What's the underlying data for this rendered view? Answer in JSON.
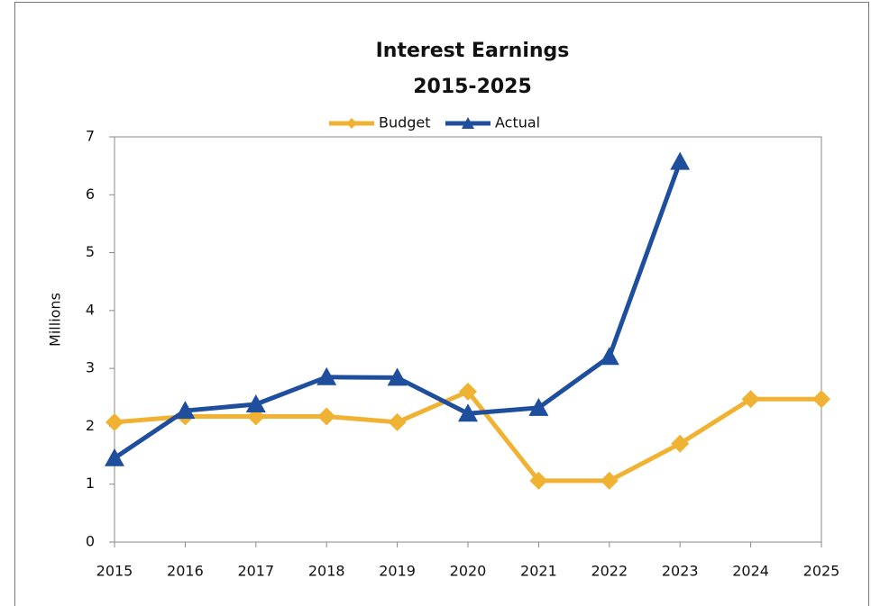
{
  "chart_data": {
    "type": "line",
    "title": [
      "Interest Earnings",
      "2015-2025"
    ],
    "y_label": "Millions",
    "x": [
      2015,
      2016,
      2017,
      2018,
      2019,
      2020,
      2021,
      2022,
      2023,
      2024,
      2025
    ],
    "xlim": [
      2015,
      2025
    ],
    "xticks": [
      2015,
      2016,
      2017,
      2018,
      2019,
      2020,
      2021,
      2022,
      2023,
      2024,
      2025
    ],
    "ylim": [
      0,
      7
    ],
    "yticks": [
      0,
      1,
      2,
      3,
      4,
      5,
      6,
      7
    ],
    "legend": "top",
    "series": [
      {
        "name": "Budget",
        "color": "#f0b232",
        "marker": "diamond",
        "values": [
          2.07,
          2.17,
          2.17,
          2.17,
          2.07,
          2.6,
          1.06,
          1.06,
          1.7,
          2.47,
          2.47
        ]
      },
      {
        "name": "Actual",
        "color": "#1f4e9c",
        "marker": "triangle",
        "values": [
          1.45,
          2.27,
          2.38,
          2.85,
          2.84,
          2.22,
          2.32,
          3.2,
          6.57,
          null,
          null
        ]
      }
    ]
  }
}
